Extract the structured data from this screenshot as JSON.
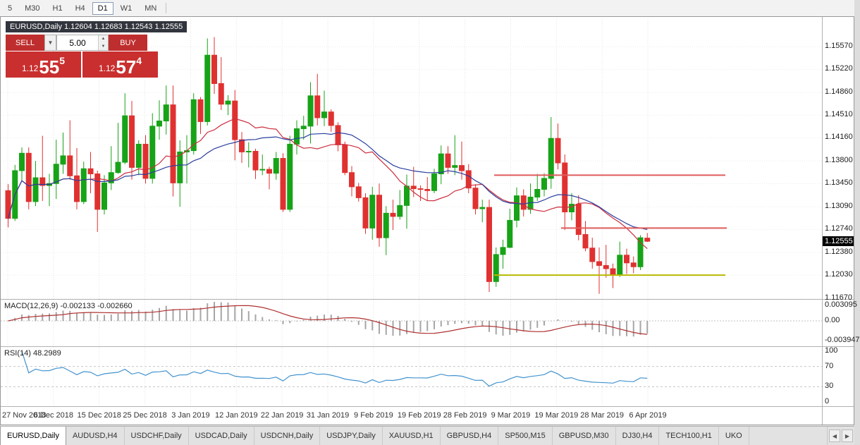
{
  "toolbar": {
    "timeframes": [
      {
        "label": "5",
        "active": false
      },
      {
        "label": "M30",
        "active": false
      },
      {
        "label": "H1",
        "active": false
      },
      {
        "label": "H4",
        "active": false
      },
      {
        "label": "D1",
        "active": true
      },
      {
        "label": "W1",
        "active": false
      },
      {
        "label": "MN",
        "active": false
      }
    ]
  },
  "chart": {
    "title_text": "EURUSD,Daily 1.12604 1.12683 1.12543 1.12555",
    "symbol": "EURUSD",
    "period": "Daily",
    "open": "1.12604",
    "high": "1.12683",
    "low": "1.12543",
    "close": "1.12555"
  },
  "trade_panel": {
    "sell_label": "SELL",
    "buy_label": "BUY",
    "volume": "5.00",
    "sell_price": {
      "prefix": "1.12",
      "main": "55",
      "pip": "5"
    },
    "buy_price": {
      "prefix": "1.12",
      "main": "57",
      "pip": "4"
    }
  },
  "price_axis": {
    "ticks": [
      "1.15570",
      "1.15220",
      "1.14860",
      "1.14510",
      "1.14160",
      "1.13800",
      "1.13450",
      "1.13090",
      "1.12740",
      "1.12380",
      "1.12030",
      "1.11670"
    ],
    "current": "1.12555"
  },
  "indicators": {
    "macd": {
      "label": "MACD(12,26,9) -0.002133 -0.002660",
      "axis": [
        "0.003095",
        "0.00",
        "-0.003947"
      ]
    },
    "rsi": {
      "label": "RSI(14) 48.2989",
      "axis": [
        "100",
        "70",
        "30",
        "0"
      ]
    }
  },
  "date_axis": [
    "27 Nov 2018",
    "6 Dec 2018",
    "15 Dec 2018",
    "25 Dec 2018",
    "3 Jan 2019",
    "12 Jan 2019",
    "22 Jan 2019",
    "31 Jan 2019",
    "9 Feb 2019",
    "19 Feb 2019",
    "28 Feb 2019",
    "9 Mar 2019",
    "19 Mar 2019",
    "28 Mar 2019",
    "6 Apr 2019"
  ],
  "tabs": [
    {
      "label": "EURUSD,Daily",
      "active": true
    },
    {
      "label": "AUDUSD,H4",
      "active": false
    },
    {
      "label": "USDCHF,Daily",
      "active": false
    },
    {
      "label": "USDCAD,Daily",
      "active": false
    },
    {
      "label": "USDCNH,Daily",
      "active": false
    },
    {
      "label": "USDJPY,Daily",
      "active": false
    },
    {
      "label": "XAUUSD,H1",
      "active": false
    },
    {
      "label": "GBPUSD,H4",
      "active": false
    },
    {
      "label": "SP500,M15",
      "active": false
    },
    {
      "label": "GBPUSD,M30",
      "active": false
    },
    {
      "label": "DJ30,H4",
      "active": false
    },
    {
      "label": "TECH100,H1",
      "active": false
    },
    {
      "label": "UKO",
      "active": false
    }
  ],
  "colors": {
    "candle_up": "#17a317",
    "candle_down": "#e03131",
    "ma_fast": "#cc2f3f",
    "ma_slow": "#2b3f9e",
    "macd_hist": "#a6a6a6",
    "macd_signal": "#b03030",
    "rsi_line": "#4393ce",
    "hline_red": "#e05c5c",
    "hline_yellow": "#b8b800",
    "trade_red": "#c12f2f",
    "badge_dark": "#32353d"
  },
  "chart_data": {
    "type": "candlestick",
    "symbol": "EURUSD",
    "timeframe": "Daily",
    "ylim": [
      1.1166,
      1.16
    ],
    "candles": [
      [
        1.1334,
        1.1344,
        1.1277,
        1.1291
      ],
      [
        1.1291,
        1.1374,
        1.1287,
        1.1365
      ],
      [
        1.1365,
        1.1401,
        1.1348,
        1.1392
      ],
      [
        1.1392,
        1.1401,
        1.1305,
        1.1317
      ],
      [
        1.1317,
        1.138,
        1.131,
        1.1354
      ],
      [
        1.1354,
        1.1419,
        1.1318,
        1.1342
      ],
      [
        1.1342,
        1.136,
        1.131,
        1.1345
      ],
      [
        1.1345,
        1.1413,
        1.1321,
        1.1375
      ],
      [
        1.1375,
        1.1424,
        1.136,
        1.1388
      ],
      [
        1.1388,
        1.1443,
        1.1351,
        1.1357
      ],
      [
        1.1357,
        1.14,
        1.1305,
        1.1317
      ],
      [
        1.1317,
        1.1379,
        1.1313,
        1.1368
      ],
      [
        1.1368,
        1.1394,
        1.133,
        1.136
      ],
      [
        1.136,
        1.1365,
        1.127,
        1.1305
      ],
      [
        1.1305,
        1.1358,
        1.1297,
        1.1346
      ],
      [
        1.1346,
        1.1403,
        1.1335,
        1.1362
      ],
      [
        1.1362,
        1.1439,
        1.136,
        1.1378
      ],
      [
        1.1378,
        1.1485,
        1.1375,
        1.145
      ],
      [
        1.145,
        1.1473,
        1.1351,
        1.137
      ],
      [
        1.137,
        1.1412,
        1.1358,
        1.1406
      ],
      [
        1.1406,
        1.142,
        1.1345,
        1.1353
      ],
      [
        1.1353,
        1.1454,
        1.1345,
        1.1434
      ],
      [
        1.1434,
        1.1474,
        1.1413,
        1.1442
      ],
      [
        1.1442,
        1.1497,
        1.1421,
        1.1467
      ],
      [
        1.1467,
        1.1497,
        1.1325,
        1.1346
      ],
      [
        1.1346,
        1.1412,
        1.1309,
        1.1394
      ],
      [
        1.1394,
        1.142,
        1.1345,
        1.1396
      ],
      [
        1.1396,
        1.1485,
        1.139,
        1.1475
      ],
      [
        1.1475,
        1.1479,
        1.1422,
        1.1441
      ],
      [
        1.1441,
        1.157,
        1.1435,
        1.1544
      ],
      [
        1.1544,
        1.1572,
        1.1484,
        1.15
      ],
      [
        1.15,
        1.1541,
        1.1459,
        1.1468
      ],
      [
        1.1468,
        1.1482,
        1.1451,
        1.1473
      ],
      [
        1.1473,
        1.149,
        1.1381,
        1.1413
      ],
      [
        1.1413,
        1.1425,
        1.1377,
        1.1394
      ],
      [
        1.1394,
        1.1409,
        1.137,
        1.1395
      ],
      [
        1.1395,
        1.1399,
        1.1352,
        1.1366
      ],
      [
        1.1366,
        1.139,
        1.1358,
        1.1367
      ],
      [
        1.1367,
        1.1371,
        1.1336,
        1.1361
      ],
      [
        1.1361,
        1.1394,
        1.1351,
        1.1384
      ],
      [
        1.1384,
        1.1392,
        1.1301,
        1.1305
      ],
      [
        1.1305,
        1.1419,
        1.1301,
        1.1406
      ],
      [
        1.1406,
        1.1443,
        1.139,
        1.143
      ],
      [
        1.143,
        1.145,
        1.1413,
        1.1434
      ],
      [
        1.1434,
        1.1502,
        1.1407,
        1.1481
      ],
      [
        1.1481,
        1.1515,
        1.1435,
        1.1447
      ],
      [
        1.1447,
        1.1489,
        1.1434,
        1.1456
      ],
      [
        1.1456,
        1.146,
        1.1425,
        1.1435
      ],
      [
        1.1435,
        1.144,
        1.1395,
        1.1405
      ],
      [
        1.1405,
        1.141,
        1.1358,
        1.1362
      ],
      [
        1.1362,
        1.1372,
        1.1325,
        1.134
      ],
      [
        1.134,
        1.1346,
        1.1317,
        1.1323
      ],
      [
        1.1323,
        1.133,
        1.1267,
        1.1276
      ],
      [
        1.1276,
        1.134,
        1.1258,
        1.1327
      ],
      [
        1.1327,
        1.1345,
        1.1247,
        1.1261
      ],
      [
        1.1261,
        1.131,
        1.1234,
        1.1299
      ],
      [
        1.1299,
        1.132,
        1.1273,
        1.1294
      ],
      [
        1.1294,
        1.1335,
        1.1289,
        1.1311
      ],
      [
        1.1311,
        1.1359,
        1.1275,
        1.1341
      ],
      [
        1.1341,
        1.1371,
        1.1324,
        1.1337
      ],
      [
        1.1337,
        1.1342,
        1.1318,
        1.1336
      ],
      [
        1.1336,
        1.1355,
        1.1319,
        1.1334
      ],
      [
        1.1334,
        1.1368,
        1.133,
        1.136
      ],
      [
        1.136,
        1.1404,
        1.1344,
        1.1391
      ],
      [
        1.1391,
        1.1403,
        1.136,
        1.137
      ],
      [
        1.137,
        1.142,
        1.1358,
        1.1373
      ],
      [
        1.1373,
        1.141,
        1.1351,
        1.1365
      ],
      [
        1.1365,
        1.1375,
        1.133,
        1.1338
      ],
      [
        1.1338,
        1.1344,
        1.1297,
        1.1306
      ],
      [
        1.1306,
        1.132,
        1.1285,
        1.1308
      ],
      [
        1.1308,
        1.132,
        1.1177,
        1.1193
      ],
      [
        1.1193,
        1.1246,
        1.1185,
        1.1235
      ],
      [
        1.1235,
        1.1258,
        1.1213,
        1.1246
      ],
      [
        1.1246,
        1.1306,
        1.1245,
        1.1288
      ],
      [
        1.1288,
        1.1339,
        1.1277,
        1.1326
      ],
      [
        1.1326,
        1.1336,
        1.1294,
        1.1305
      ],
      [
        1.1305,
        1.1345,
        1.1298,
        1.1324
      ],
      [
        1.1324,
        1.136,
        1.1318,
        1.1336
      ],
      [
        1.1336,
        1.1361,
        1.1325,
        1.1353
      ],
      [
        1.1353,
        1.1448,
        1.1337,
        1.1415
      ],
      [
        1.1415,
        1.1438,
        1.1367,
        1.1377
      ],
      [
        1.1377,
        1.139,
        1.1273,
        1.1301
      ],
      [
        1.1301,
        1.133,
        1.1288,
        1.1313
      ],
      [
        1.1313,
        1.1327,
        1.1257,
        1.1266
      ],
      [
        1.1266,
        1.1287,
        1.124,
        1.1245
      ],
      [
        1.1245,
        1.1261,
        1.1213,
        1.1224
      ],
      [
        1.1224,
        1.1246,
        1.1174,
        1.1218
      ],
      [
        1.1218,
        1.125,
        1.1199,
        1.1213
      ],
      [
        1.1213,
        1.1221,
        1.1183,
        1.1204
      ],
      [
        1.1204,
        1.1255,
        1.12,
        1.1234
      ],
      [
        1.1234,
        1.1244,
        1.1205,
        1.1222
      ],
      [
        1.1222,
        1.1232,
        1.1206,
        1.1216
      ],
      [
        1.1216,
        1.1265,
        1.1211,
        1.1261
      ],
      [
        1.12604,
        1.12683,
        1.12543,
        1.12555
      ]
    ],
    "moving_averages": [
      {
        "period": 13,
        "color_key": "ma_fast"
      },
      {
        "period": 24,
        "color_key": "ma_slow"
      }
    ],
    "hlines": [
      {
        "price": 1.1358,
        "color_key": "hline_red",
        "x1": 700,
        "x2": 1028
      },
      {
        "price": 1.1276,
        "color_key": "hline_red",
        "x1": 795,
        "x2": 1030
      },
      {
        "price": 1.1203,
        "color_key": "hline_yellow",
        "x1": 700,
        "x2": 1028
      }
    ],
    "macd": {
      "params": [
        12,
        26,
        9
      ],
      "main": -0.002133,
      "signal": -0.00266,
      "scale_max": 0.003095,
      "scale_min": -0.003947
    },
    "rsi": {
      "period": 14,
      "value": 48.2989,
      "levels": [
        70,
        30
      ]
    }
  }
}
